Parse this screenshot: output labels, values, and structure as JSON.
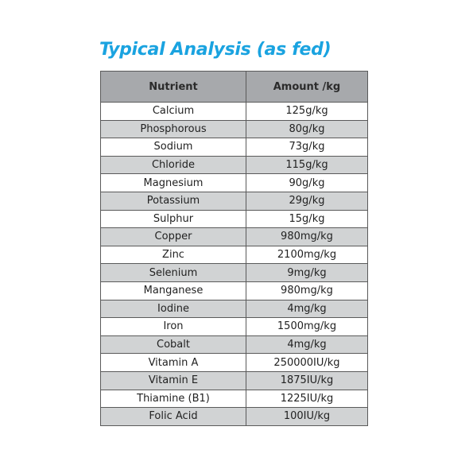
{
  "title": "Typical Analysis (as fed)",
  "table": {
    "headers": [
      "Nutrient",
      "Amount /kg"
    ],
    "rows": [
      [
        "Calcium",
        "125g/kg"
      ],
      [
        "Phosphorous",
        "80g/kg"
      ],
      [
        "Sodium",
        "73g/kg"
      ],
      [
        "Chloride",
        "115g/kg"
      ],
      [
        "Magnesium",
        "90g/kg"
      ],
      [
        "Potassium",
        "29g/kg"
      ],
      [
        "Sulphur",
        "15g/kg"
      ],
      [
        "Copper",
        "980mg/kg"
      ],
      [
        "Zinc",
        "2100mg/kg"
      ],
      [
        "Selenium",
        "9mg/kg"
      ],
      [
        "Manganese",
        "980mg/kg"
      ],
      [
        "Iodine",
        "4mg/kg"
      ],
      [
        "Iron",
        "1500mg/kg"
      ],
      [
        "Cobalt",
        "4mg/kg"
      ],
      [
        "Vitamin A",
        "250000IU/kg"
      ],
      [
        "Vitamin E",
        "1875IU/kg"
      ],
      [
        "Thiamine (B1)",
        "1225IU/kg"
      ],
      [
        "Folic Acid",
        "100IU/kg"
      ]
    ]
  },
  "colors": {
    "title": "#1aa3e0",
    "header_bg": "#a7a9ac",
    "row_alt_bg": "#d1d3d4",
    "border": "#5a5a5a"
  }
}
